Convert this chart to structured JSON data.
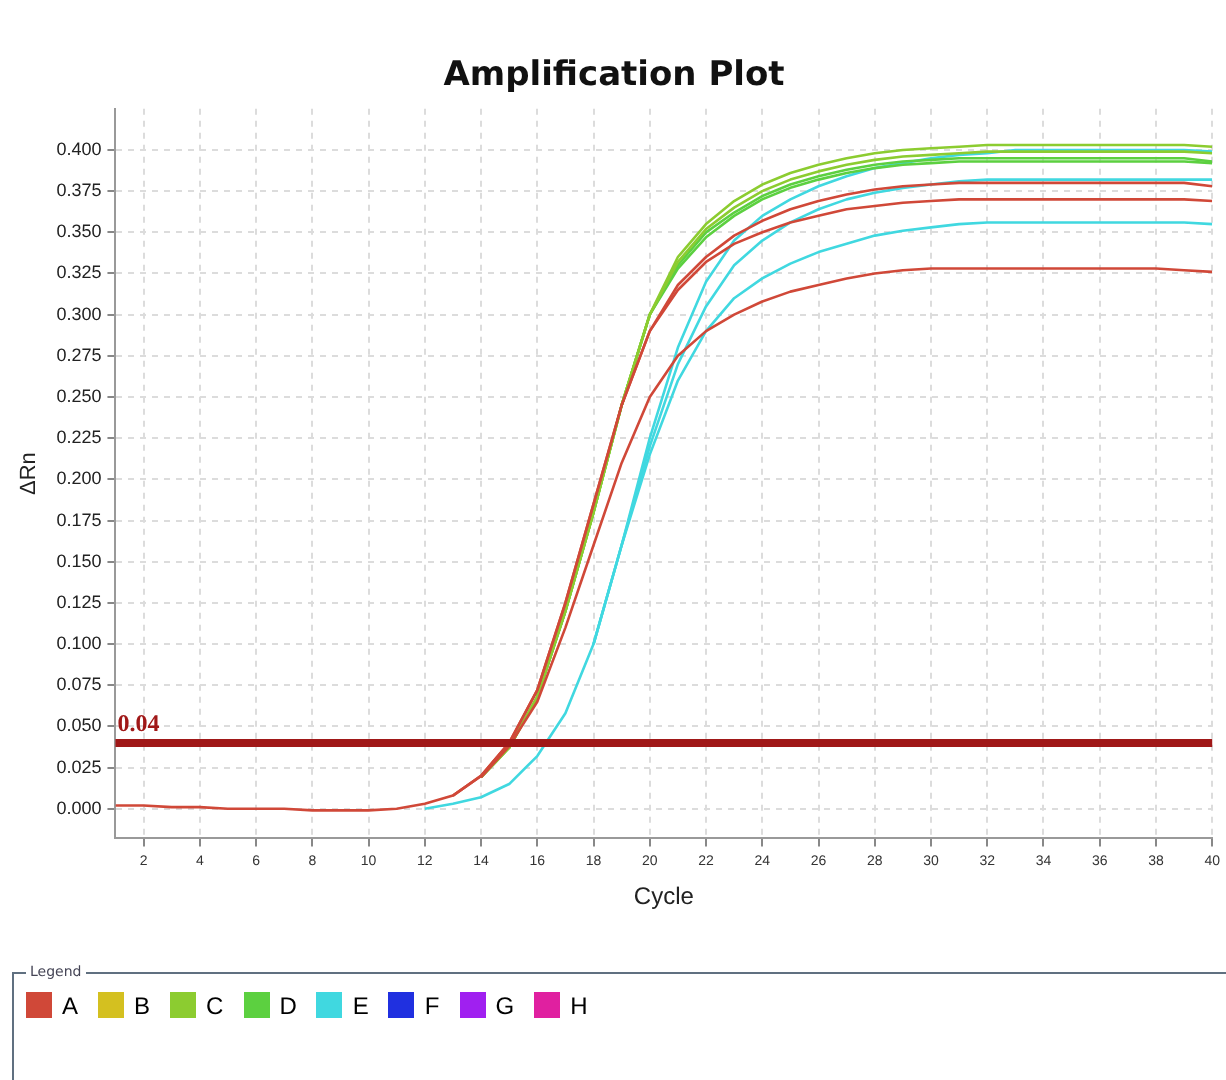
{
  "chart_data": {
    "type": "line",
    "title": "Amplification Plot",
    "xlabel": "Cycle",
    "ylabel": "ΔRn",
    "legend_title": "Legend",
    "legend": "bottom",
    "grid": true,
    "marker": "none",
    "line_style": "solid",
    "x": [
      1,
      2,
      3,
      4,
      5,
      6,
      7,
      8,
      9,
      10,
      11,
      12,
      13,
      14,
      15,
      16,
      17,
      18,
      19,
      20,
      21,
      22,
      23,
      24,
      25,
      26,
      27,
      28,
      29,
      30,
      31,
      32,
      33,
      34,
      35,
      36,
      37,
      38,
      39,
      40
    ],
    "xlim": [
      1,
      40
    ],
    "xticks": [
      2,
      4,
      6,
      8,
      10,
      12,
      14,
      16,
      18,
      20,
      22,
      24,
      26,
      28,
      30,
      32,
      34,
      36,
      38,
      40
    ],
    "ylim": [
      -0.018,
      0.425
    ],
    "yticks": [
      {
        "value": 0,
        "label": "0.000"
      },
      {
        "value": 0.025,
        "label": "0.025"
      },
      {
        "value": 0.05,
        "label": "0.050"
      },
      {
        "value": 0.075,
        "label": "0.075"
      },
      {
        "value": 0.1,
        "label": "0.100"
      },
      {
        "value": 0.125,
        "label": "0.125"
      },
      {
        "value": 0.15,
        "label": "0.150"
      },
      {
        "value": 0.175,
        "label": "0.175"
      },
      {
        "value": 0.2,
        "label": "0.200"
      },
      {
        "value": 0.225,
        "label": "0.225"
      },
      {
        "value": 0.25,
        "label": "0.250"
      },
      {
        "value": 0.275,
        "label": "0.275"
      },
      {
        "value": 0.3,
        "label": "0.300"
      },
      {
        "value": 0.325,
        "label": "0.325"
      },
      {
        "value": 0.35,
        "label": "0.350"
      },
      {
        "value": 0.375,
        "label": "0.375"
      },
      {
        "value": 0.4,
        "label": "0.400"
      }
    ],
    "ref_lines": [
      {
        "axis": "y",
        "value": 0.04,
        "label": "0.04",
        "color": "#a01818"
      }
    ],
    "series": [
      {
        "name": "A",
        "color": "#d04838",
        "values": [
          0.002,
          0.002,
          0.001,
          0.001,
          0,
          0,
          0,
          -0.001,
          -0.001,
          -0.001,
          0,
          0.003,
          0.008,
          0.02,
          0.04,
          0.072,
          0.125,
          0.185,
          0.245,
          0.29,
          0.318,
          0.335,
          0.348,
          0.357,
          0.364,
          0.369,
          0.373,
          0.376,
          0.378,
          0.379,
          0.38,
          0.38,
          0.38,
          0.38,
          0.38,
          0.38,
          0.38,
          0.38,
          0.38,
          0.378
        ]
      },
      {
        "color": "#d04838",
        "values": [
          null,
          null,
          null,
          null,
          null,
          null,
          null,
          null,
          null,
          null,
          null,
          null,
          0.008,
          0.02,
          0.04,
          0.072,
          0.125,
          0.185,
          0.245,
          0.29,
          0.315,
          0.332,
          0.343,
          0.35,
          0.356,
          0.36,
          0.364,
          0.366,
          0.368,
          0.369,
          0.37,
          0.37,
          0.37,
          0.37,
          0.37,
          0.37,
          0.37,
          0.37,
          0.37,
          0.369
        ]
      },
      {
        "color": "#d04838",
        "values": [
          null,
          null,
          null,
          null,
          null,
          null,
          null,
          null,
          null,
          null,
          null,
          null,
          null,
          0.019,
          0.038,
          0.065,
          0.11,
          0.16,
          0.21,
          0.25,
          0.275,
          0.29,
          0.3,
          0.308,
          0.314,
          0.318,
          0.322,
          0.325,
          0.327,
          0.328,
          0.328,
          0.328,
          0.328,
          0.328,
          0.328,
          0.328,
          0.328,
          0.328,
          0.327,
          0.326
        ]
      },
      {
        "name": "B",
        "color": "#d4c020",
        "values": [
          null,
          null,
          null,
          null,
          null,
          null,
          null,
          null,
          null,
          null,
          null,
          null,
          null,
          null,
          null,
          null,
          null,
          null,
          null,
          null,
          null,
          null,
          null,
          null,
          null,
          null,
          null,
          null,
          null,
          null,
          null,
          null,
          null,
          null,
          null,
          null,
          null,
          null,
          null,
          null
        ]
      },
      {
        "name": "C",
        "color": "#8ccc30",
        "values": [
          null,
          null,
          null,
          null,
          null,
          null,
          null,
          null,
          null,
          null,
          null,
          null,
          null,
          0.019,
          0.037,
          0.068,
          0.12,
          0.18,
          0.245,
          0.3,
          0.335,
          0.355,
          0.369,
          0.379,
          0.386,
          0.391,
          0.395,
          0.398,
          0.4,
          0.401,
          0.402,
          0.403,
          0.403,
          0.403,
          0.403,
          0.403,
          0.403,
          0.403,
          0.403,
          0.402
        ]
      },
      {
        "color": "#8ccc30",
        "values": [
          null,
          null,
          null,
          null,
          null,
          null,
          null,
          null,
          null,
          null,
          null,
          null,
          null,
          null,
          0.037,
          0.068,
          0.12,
          0.18,
          0.245,
          0.3,
          0.332,
          0.352,
          0.365,
          0.375,
          0.382,
          0.387,
          0.391,
          0.394,
          0.396,
          0.397,
          0.398,
          0.399,
          0.399,
          0.399,
          0.399,
          0.399,
          0.399,
          0.399,
          0.399,
          0.398
        ]
      },
      {
        "name": "D",
        "color": "#5cd040",
        "values": [
          null,
          null,
          null,
          null,
          null,
          null,
          null,
          null,
          null,
          null,
          null,
          null,
          null,
          0.019,
          0.037,
          0.068,
          0.12,
          0.18,
          0.245,
          0.3,
          0.33,
          0.35,
          0.362,
          0.372,
          0.379,
          0.384,
          0.388,
          0.391,
          0.393,
          0.394,
          0.395,
          0.395,
          0.395,
          0.395,
          0.395,
          0.395,
          0.395,
          0.395,
          0.395,
          0.393
        ]
      },
      {
        "color": "#5cd040",
        "values": [
          null,
          null,
          null,
          null,
          null,
          null,
          null,
          null,
          null,
          null,
          null,
          null,
          null,
          null,
          null,
          0.068,
          0.12,
          0.18,
          0.245,
          0.3,
          0.328,
          0.347,
          0.36,
          0.37,
          0.377,
          0.382,
          0.386,
          0.389,
          0.391,
          0.392,
          0.393,
          0.393,
          0.393,
          0.393,
          0.393,
          0.393,
          0.393,
          0.393,
          0.393,
          0.392
        ]
      },
      {
        "name": "E",
        "color": "#40d8e0",
        "values": [
          null,
          null,
          null,
          null,
          null,
          null,
          null,
          null,
          null,
          null,
          null,
          0,
          0.003,
          0.007,
          0.015,
          0.032,
          0.058,
          0.1,
          0.16,
          0.225,
          0.28,
          0.32,
          0.345,
          0.36,
          0.37,
          0.378,
          0.384,
          0.389,
          0.392,
          0.395,
          0.397,
          0.398,
          0.4,
          0.4,
          0.4,
          0.4,
          0.4,
          0.4,
          0.4,
          0.399
        ]
      },
      {
        "color": "#40d8e0",
        "values": [
          null,
          null,
          null,
          null,
          null,
          null,
          null,
          null,
          null,
          null,
          null,
          null,
          null,
          null,
          null,
          null,
          null,
          0.1,
          0.16,
          0.22,
          0.27,
          0.305,
          0.33,
          0.345,
          0.356,
          0.364,
          0.37,
          0.374,
          0.377,
          0.379,
          0.381,
          0.382,
          0.382,
          0.382,
          0.382,
          0.382,
          0.382,
          0.382,
          0.382,
          0.382
        ]
      },
      {
        "color": "#40d8e0",
        "values": [
          null,
          null,
          null,
          null,
          null,
          null,
          null,
          null,
          null,
          null,
          null,
          null,
          null,
          null,
          null,
          null,
          null,
          0.1,
          0.16,
          0.215,
          0.26,
          0.29,
          0.31,
          0.322,
          0.331,
          0.338,
          0.343,
          0.348,
          0.351,
          0.353,
          0.355,
          0.356,
          0.356,
          0.356,
          0.356,
          0.356,
          0.356,
          0.356,
          0.356,
          0.355
        ]
      },
      {
        "name": "F",
        "color": "#2030e0",
        "values": [
          null,
          null,
          null,
          null,
          null,
          null,
          null,
          null,
          null,
          null,
          null,
          null,
          null,
          null,
          null,
          null,
          null,
          null,
          null,
          null,
          null,
          null,
          null,
          null,
          null,
          null,
          null,
          null,
          null,
          null,
          null,
          null,
          null,
          null,
          null,
          null,
          null,
          null,
          null,
          null
        ]
      },
      {
        "name": "G",
        "color": "#a020f0",
        "values": [
          null,
          null,
          null,
          null,
          null,
          null,
          null,
          null,
          null,
          null,
          null,
          null,
          null,
          null,
          null,
          null,
          null,
          null,
          null,
          null,
          null,
          null,
          null,
          null,
          null,
          null,
          null,
          null,
          null,
          null,
          null,
          null,
          null,
          null,
          null,
          null,
          null,
          null,
          null,
          null
        ]
      },
      {
        "name": "H",
        "color": "#e020a0",
        "values": [
          null,
          null,
          null,
          null,
          null,
          null,
          null,
          null,
          null,
          null,
          null,
          null,
          null,
          null,
          null,
          null,
          null,
          null,
          null,
          null,
          null,
          null,
          null,
          null,
          null,
          null,
          null,
          null,
          null,
          null,
          null,
          null,
          null,
          null,
          null,
          null,
          null,
          null,
          null,
          null
        ]
      }
    ]
  }
}
